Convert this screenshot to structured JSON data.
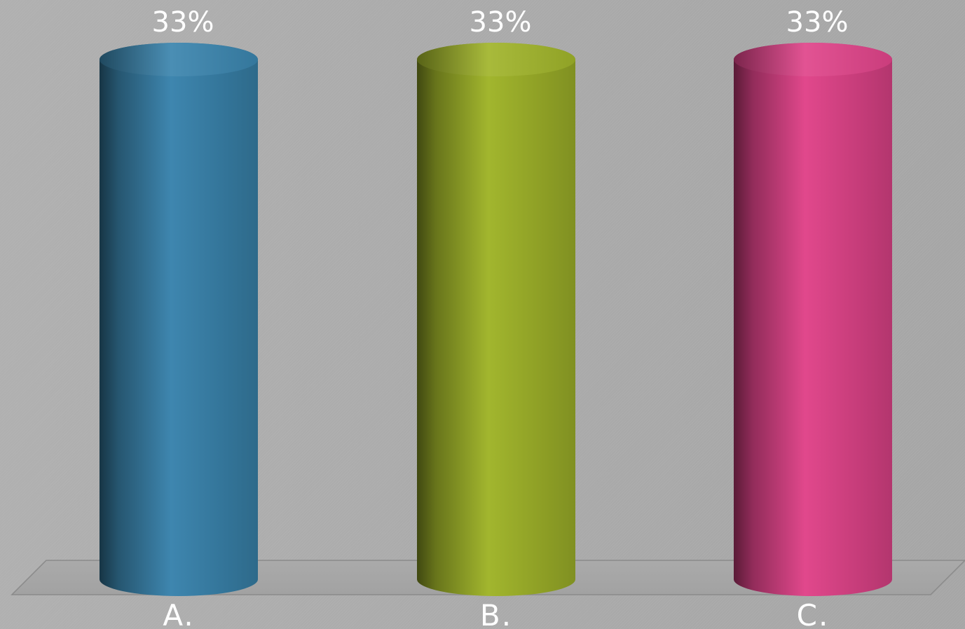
{
  "chart_data": {
    "type": "bar",
    "style": "3d-cylinder",
    "categories": [
      "A.",
      "B.",
      "C."
    ],
    "values": [
      33,
      33,
      33
    ],
    "value_labels": [
      "33%",
      "33%",
      "33%"
    ],
    "colors": [
      "#3a84ad",
      "#a0b42a",
      "#e0448a"
    ],
    "ylim": [
      0,
      33
    ],
    "grid": false,
    "legend": "none"
  }
}
